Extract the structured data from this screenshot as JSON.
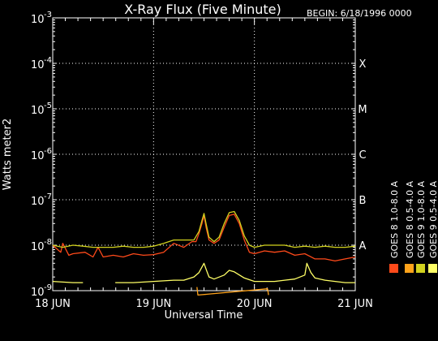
{
  "chart_data": {
    "type": "line",
    "title": "X-Ray Flux (Five Minute)",
    "begin_label": "BEGIN: 6/18/1996 0000",
    "xlabel": "Universal Time",
    "ylabel": "Watts meter2",
    "x_ticks": [
      "18 JUN",
      "19 JUN",
      "20 JUN",
      "21 JUN"
    ],
    "x_range_days": [
      0,
      3
    ],
    "y_scale": "log",
    "y_range": [
      1e-09,
      0.001
    ],
    "y_ticks": [
      {
        "base": "10",
        "exp": "-9"
      },
      {
        "base": "10",
        "exp": "-8"
      },
      {
        "base": "10",
        "exp": "-7"
      },
      {
        "base": "10",
        "exp": "-6"
      },
      {
        "base": "10",
        "exp": "-5"
      },
      {
        "base": "10",
        "exp": "-4"
      },
      {
        "base": "10",
        "exp": "-3"
      }
    ],
    "flare_classes": [
      {
        "label": "A",
        "level": 1e-08
      },
      {
        "label": "B",
        "level": 1e-07
      },
      {
        "label": "C",
        "level": 1e-06
      },
      {
        "label": "M",
        "level": 1e-05
      },
      {
        "label": "X",
        "level": 0.0001
      }
    ],
    "grid": true,
    "legend_position": "right, vertical",
    "series": [
      {
        "name": "GOES 8 1.0-8.0 A",
        "color": "#ff4a1a",
        "points": [
          [
            0,
            1e-08
          ],
          [
            0.08,
            7e-09
          ],
          [
            0.1,
            1.1e-08
          ],
          [
            0.16,
            6e-09
          ],
          [
            0.2,
            6.5e-09
          ],
          [
            0.32,
            7e-09
          ],
          [
            0.4,
            5.5e-09
          ],
          [
            0.45,
            9e-09
          ],
          [
            0.5,
            5.5e-09
          ],
          [
            0.6,
            6e-09
          ],
          [
            0.7,
            5.5e-09
          ],
          [
            0.8,
            6.5e-09
          ],
          [
            0.9,
            6e-09
          ],
          [
            1.0,
            6.2e-09
          ],
          [
            1.1,
            7e-09
          ],
          [
            1.2,
            1.1e-08
          ],
          [
            1.3,
            9e-09
          ],
          [
            1.38,
            1.2e-08
          ],
          [
            1.42,
            1.2e-08
          ],
          [
            1.45,
            1.8e-08
          ],
          [
            1.48,
            3e-08
          ],
          [
            1.5,
            4.5e-08
          ],
          [
            1.52,
            2.5e-08
          ],
          [
            1.55,
            1.3e-08
          ],
          [
            1.6,
            1.1e-08
          ],
          [
            1.65,
            1.3e-08
          ],
          [
            1.7,
            2.5e-08
          ],
          [
            1.75,
            4.5e-08
          ],
          [
            1.8,
            4.8e-08
          ],
          [
            1.85,
            3e-08
          ],
          [
            1.9,
            1.3e-08
          ],
          [
            1.95,
            7e-09
          ],
          [
            2.0,
            6.5e-09
          ],
          [
            2.1,
            7.5e-09
          ],
          [
            2.2,
            7e-09
          ],
          [
            2.3,
            7.5e-09
          ],
          [
            2.4,
            6e-09
          ],
          [
            2.5,
            6.5e-09
          ],
          [
            2.6,
            5e-09
          ],
          [
            2.7,
            5e-09
          ],
          [
            2.8,
            4.5e-09
          ],
          [
            2.9,
            5e-09
          ],
          [
            3.0,
            5.5e-09
          ]
        ]
      },
      {
        "name": "GOES 8 0.5-4.0 A",
        "color": "#ffa31a",
        "points": [
          [
            1.43,
            1.2e-09
          ],
          [
            1.44,
            8e-10
          ],
          [
            2.13,
            1.1e-09
          ],
          [
            2.14,
            8e-10
          ]
        ]
      },
      {
        "name": "GOES 9 1.0-8.0 A",
        "color": "#d2d21e",
        "points": [
          [
            0,
            1e-08
          ],
          [
            0.1,
            9e-09
          ],
          [
            0.2,
            1e-08
          ],
          [
            0.3,
            9.5e-09
          ],
          [
            0.4,
            9e-09
          ],
          [
            0.5,
            9e-09
          ],
          [
            0.6,
            9e-09
          ],
          [
            0.7,
            9.5e-09
          ],
          [
            0.8,
            9e-09
          ],
          [
            0.9,
            9e-09
          ],
          [
            1.0,
            9.5e-09
          ],
          [
            1.1,
            1.1e-08
          ],
          [
            1.2,
            1.3e-08
          ],
          [
            1.3,
            1.3e-08
          ],
          [
            1.4,
            1.3e-08
          ],
          [
            1.45,
            2e-08
          ],
          [
            1.48,
            3.5e-08
          ],
          [
            1.5,
            5e-08
          ],
          [
            1.52,
            3e-08
          ],
          [
            1.55,
            1.5e-08
          ],
          [
            1.6,
            1.2e-08
          ],
          [
            1.65,
            1.5e-08
          ],
          [
            1.7,
            3e-08
          ],
          [
            1.75,
            5.2e-08
          ],
          [
            1.8,
            5.5e-08
          ],
          [
            1.85,
            3.5e-08
          ],
          [
            1.9,
            1.6e-08
          ],
          [
            1.95,
            1e-08
          ],
          [
            2.0,
            9e-09
          ],
          [
            2.1,
            1e-08
          ],
          [
            2.2,
            1e-08
          ],
          [
            2.3,
            1e-08
          ],
          [
            2.4,
            9e-09
          ],
          [
            2.5,
            9.5e-09
          ],
          [
            2.6,
            9e-09
          ],
          [
            2.7,
            9.5e-09
          ],
          [
            2.8,
            9e-09
          ],
          [
            2.9,
            9e-09
          ],
          [
            3.0,
            9.5e-09
          ]
        ]
      },
      {
        "name": "GOES 9 0.5-4.0 A",
        "color": "#ffff66",
        "points": [
          [
            0,
            1.6e-09
          ],
          [
            0.2,
            1.5e-09
          ],
          [
            0.3,
            1.5e-09
          ],
          [
            0.34,
            null
          ],
          [
            0.62,
            1.5e-09
          ],
          [
            0.8,
            1.5e-09
          ],
          [
            1.0,
            1.6e-09
          ],
          [
            1.2,
            1.7e-09
          ],
          [
            1.3,
            1.7e-09
          ],
          [
            1.4,
            2e-09
          ],
          [
            1.45,
            2.5e-09
          ],
          [
            1.5,
            4e-09
          ],
          [
            1.52,
            3e-09
          ],
          [
            1.55,
            2e-09
          ],
          [
            1.6,
            1.8e-09
          ],
          [
            1.7,
            2.2e-09
          ],
          [
            1.75,
            2.8e-09
          ],
          [
            1.8,
            2.6e-09
          ],
          [
            1.9,
            1.9e-09
          ],
          [
            2.0,
            1.6e-09
          ],
          [
            2.1,
            1.6e-09
          ],
          [
            2.2,
            1.6e-09
          ],
          [
            2.3,
            1.7e-09
          ],
          [
            2.4,
            1.8e-09
          ],
          [
            2.5,
            2.2e-09
          ],
          [
            2.52,
            4e-09
          ],
          [
            2.56,
            2.5e-09
          ],
          [
            2.6,
            1.9e-09
          ],
          [
            2.7,
            1.7e-09
          ],
          [
            2.8,
            1.6e-09
          ],
          [
            2.9,
            1.5e-09
          ],
          [
            3.0,
            1.5e-09
          ]
        ]
      }
    ]
  }
}
